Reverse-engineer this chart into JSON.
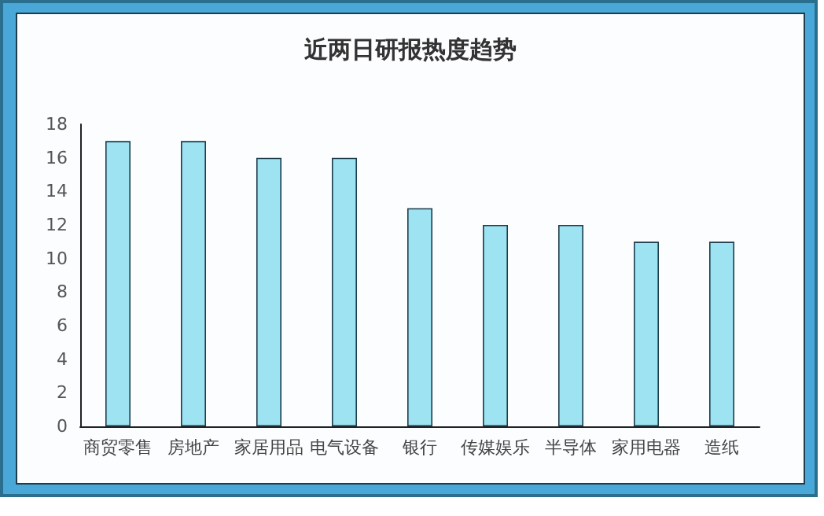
{
  "chart_data": {
    "type": "bar",
    "title": "近两日研报热度趋势",
    "categories": [
      "商贸零售",
      "房地产",
      "家居用品",
      "电气设备",
      "银行",
      "传媒娱乐",
      "半导体",
      "家用电器",
      "造纸"
    ],
    "values": [
      17,
      17,
      16,
      16,
      13,
      12,
      12,
      11,
      11
    ],
    "color": "#9ee3f2",
    "ylim": [
      0,
      18
    ],
    "yticks": [
      0,
      2,
      4,
      6,
      8,
      10,
      12,
      14,
      16,
      18
    ]
  }
}
